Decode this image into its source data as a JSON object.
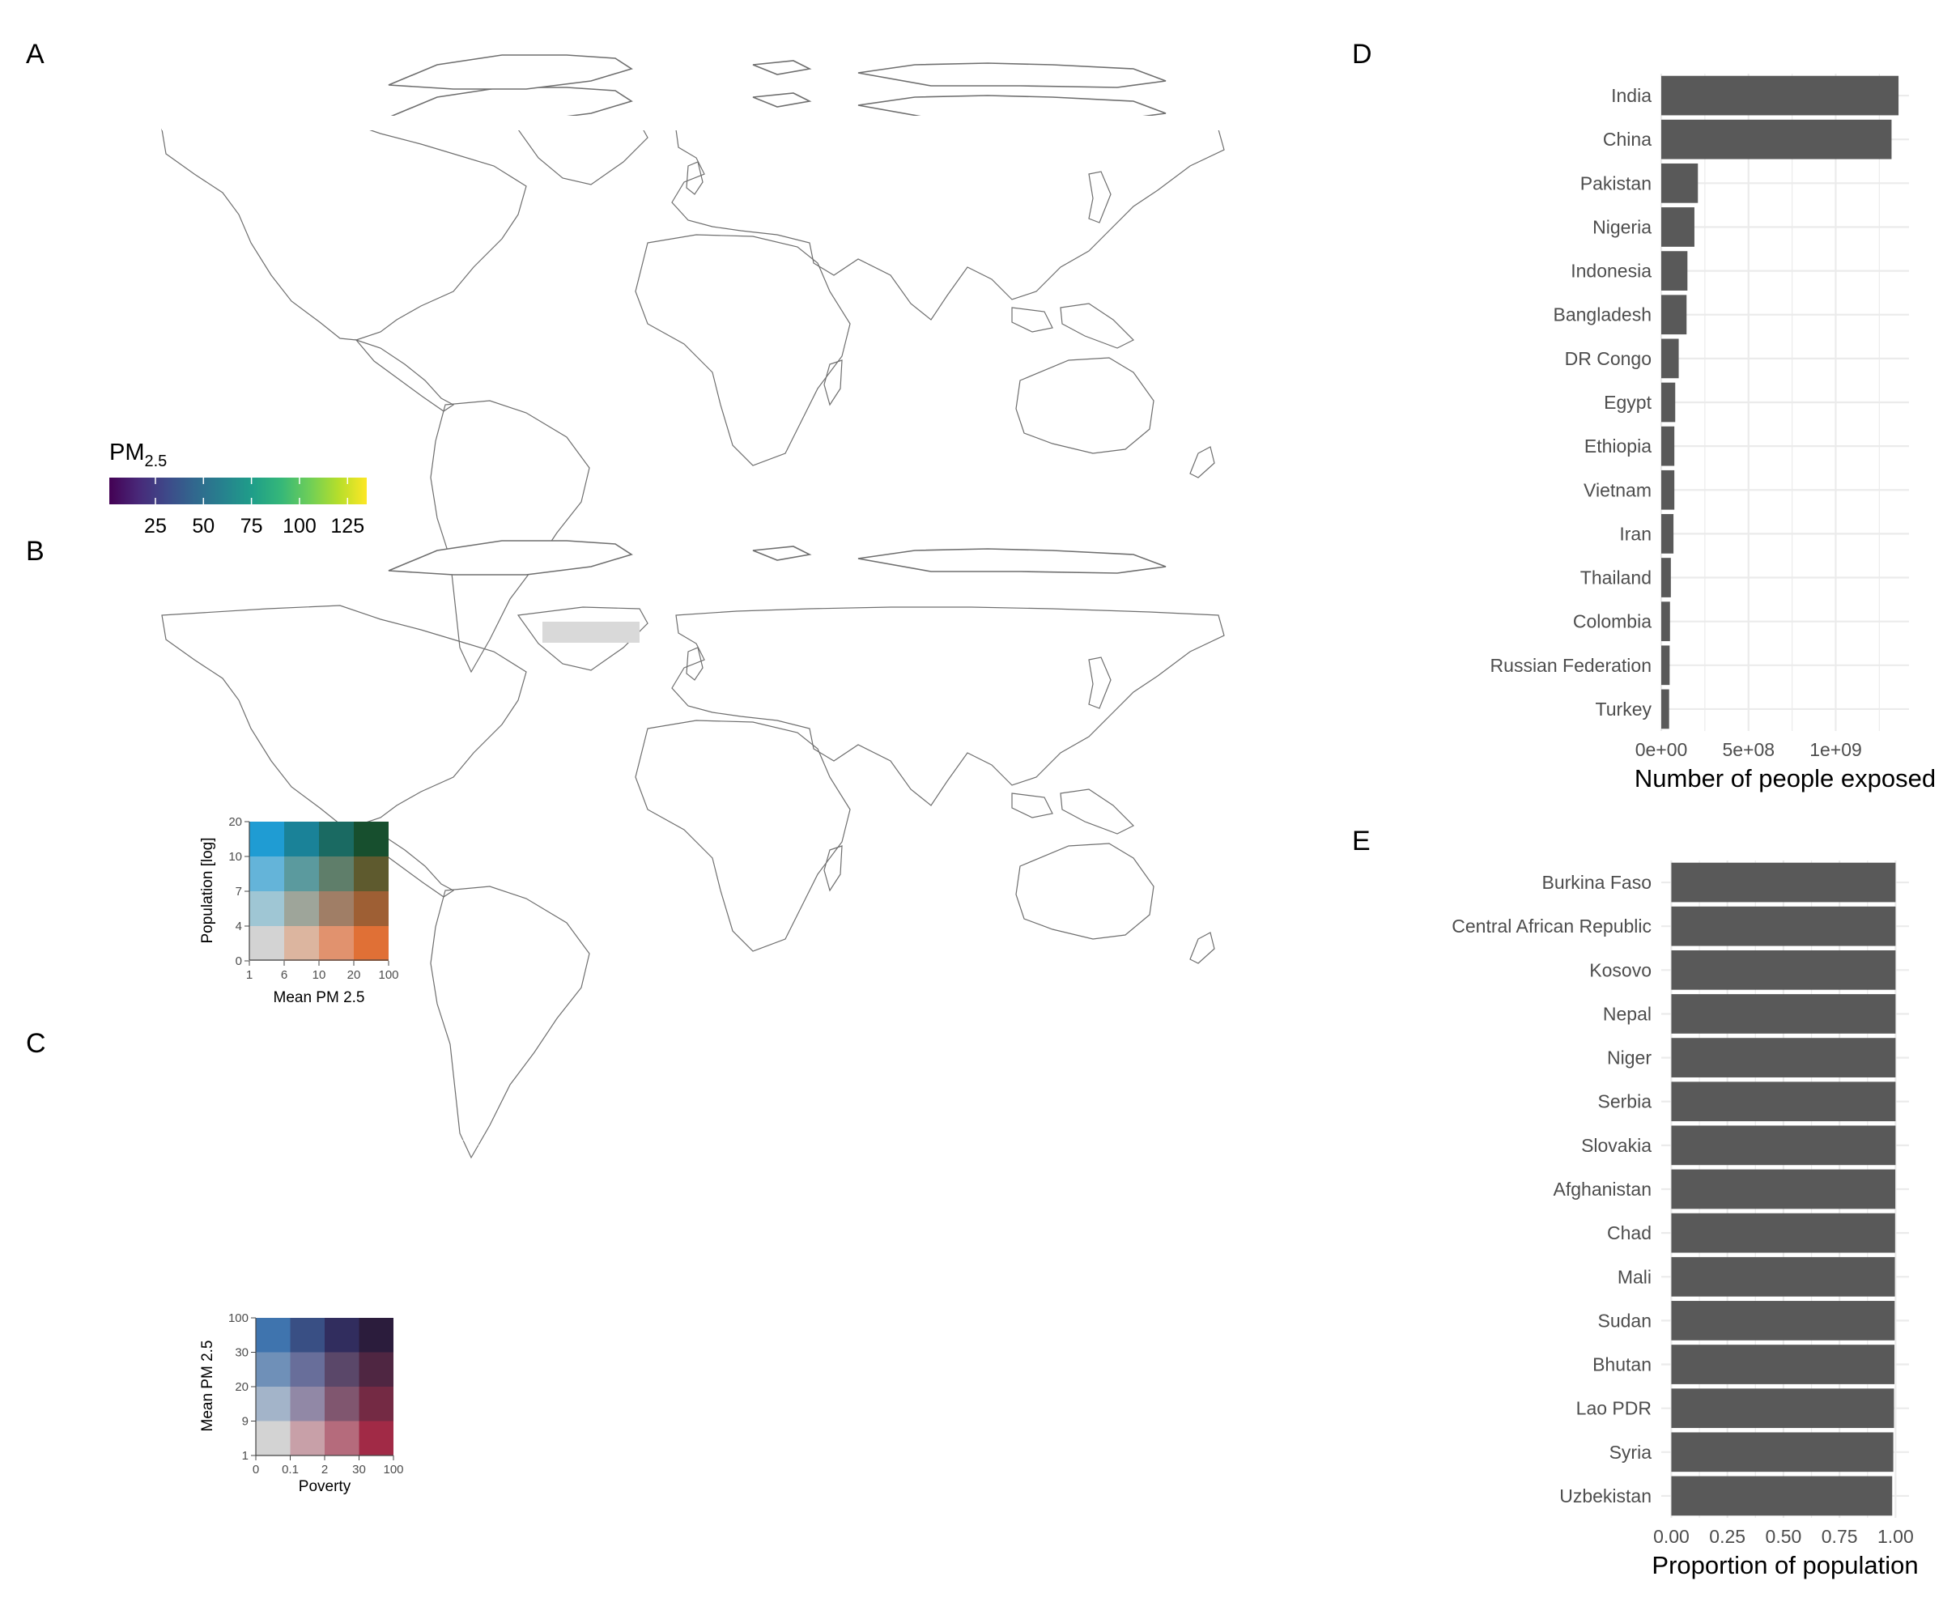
{
  "panel_letters": [
    "A",
    "B",
    "C",
    "D",
    "E"
  ],
  "colors": {
    "ocean": "#ffffff",
    "coast": "#6e6e6e",
    "bar": "#595959",
    "grid": "#ebebeb",
    "axis_text": "#4d4d4d",
    "viridis": [
      "#440154",
      "#482878",
      "#3e4989",
      "#31688e",
      "#26828e",
      "#1f9e89",
      "#35b779",
      "#6ece58",
      "#b5de2b",
      "#fde725"
    ],
    "bivariate_B": [
      [
        "#d3d3d3",
        "#dcb59f",
        "#e1926e",
        "#e07036"
      ],
      [
        "#9fc6d4",
        "#9ea59a",
        "#a07e66",
        "#9e5f34"
      ],
      [
        "#64b4d9",
        "#5b9a9e",
        "#5f7e6a",
        "#5e5a2e"
      ],
      [
        "#1f9cd3",
        "#1a8298",
        "#1a6a62",
        "#174f2e"
      ]
    ],
    "bivariate_C": [
      [
        "#d3d3d3",
        "#c8a0a8",
        "#b56b7c",
        "#a12a46"
      ],
      [
        "#a3b4c9",
        "#9188a6",
        "#80566f",
        "#742a44"
      ],
      [
        "#6f90b8",
        "#686e9a",
        "#5a4769",
        "#4f2642"
      ],
      [
        "#3f74ae",
        "#394f84",
        "#312d5e",
        "#2b1c3c"
      ]
    ],
    "no_data_gray": "#808080"
  },
  "panel_a": {
    "legend_title": "PM",
    "legend_subscript": "2.5",
    "legend_ticks": [
      "25",
      "50",
      "75",
      "100",
      "125"
    ]
  },
  "panel_b": {
    "y_axis_title": "Population [log]",
    "x_axis_title": "Mean PM 2.5",
    "y_ticks": [
      "0",
      "4",
      "7",
      "10",
      "20"
    ],
    "x_ticks": [
      "1",
      "6",
      "10",
      "20",
      "100"
    ]
  },
  "panel_c": {
    "y_axis_title": "Mean PM 2.5",
    "x_axis_title": "Poverty",
    "y_ticks": [
      "1",
      "9",
      "20",
      "30",
      "100"
    ],
    "x_ticks": [
      "0",
      "0.1",
      "2",
      "30",
      "100"
    ]
  },
  "chart_data": [
    {
      "type": "bar",
      "orientation": "horizontal",
      "categories": [
        "India",
        "China",
        "Pakistan",
        "Nigeria",
        "Indonesia",
        "Bangladesh",
        "DR Congo",
        "Egypt",
        "Ethiopia",
        "Vietnam",
        "Iran",
        "Thailand",
        "Colombia",
        "Russian Federation",
        "Turkey"
      ],
      "values": [
        1360000000,
        1320000000,
        210000000,
        190000000,
        150000000,
        145000000,
        100000000,
        80000000,
        75000000,
        75000000,
        70000000,
        55000000,
        50000000,
        48000000,
        45000000
      ],
      "xlabel": "Number of people exposed",
      "ylabel": "",
      "xlim": [
        0,
        1420000000
      ],
      "x_ticks": [
        0,
        500000000,
        1000000000
      ],
      "x_tick_labels": [
        "0e+00",
        "5e+08",
        "1e+09"
      ],
      "grid": true
    },
    {
      "type": "bar",
      "orientation": "horizontal",
      "categories": [
        "Burkina Faso",
        "Central African Republic",
        "Kosovo",
        "Nepal",
        "Niger",
        "Serbia",
        "Slovakia",
        "Afghanistan",
        "Chad",
        "Mali",
        "Sudan",
        "Bhutan",
        "Lao PDR",
        "Syria",
        "Uzbekistan"
      ],
      "values": [
        1.0,
        1.0,
        1.0,
        1.0,
        1.0,
        1.0,
        1.0,
        0.999,
        0.998,
        0.997,
        0.996,
        0.995,
        0.993,
        0.99,
        0.985
      ],
      "xlabel": "Proportion of population",
      "ylabel": "",
      "xlim": [
        -0.045,
        1.06
      ],
      "x_ticks": [
        0,
        0.25,
        0.5,
        0.75,
        1.0
      ],
      "x_tick_labels": [
        "0.00",
        "0.25",
        "0.50",
        "0.75",
        "1.00"
      ],
      "grid": true
    }
  ]
}
